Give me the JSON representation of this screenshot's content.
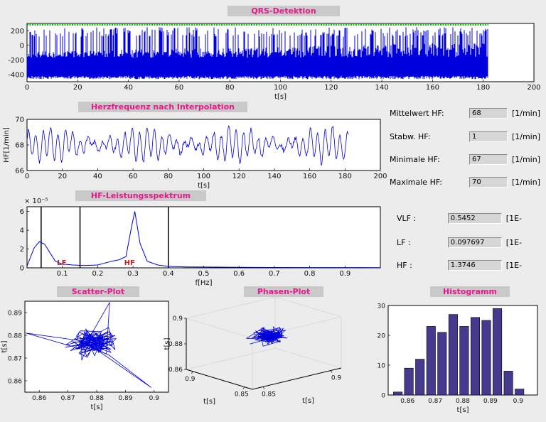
{
  "app": {
    "bg": "#ececec",
    "titlebar_bg": "#c9c9c9",
    "accent": "#e6198c",
    "plot_bg": "#ffffff",
    "signal_color": "#0000dd",
    "marker_color": "#00cc00",
    "bar_color": "#453a8e",
    "band_label_color": "#cc2222"
  },
  "fields_hf": [
    {
      "label": "Mittelwert HF:",
      "value": "68",
      "unit": "[1/min]"
    },
    {
      "label": "Stabw. HF:",
      "value": "1",
      "unit": "[1/min]"
    },
    {
      "label": "Minimale HF:",
      "value": "67",
      "unit": "[1/min]"
    },
    {
      "label": "Maximale HF:",
      "value": "70",
      "unit": "[1/min]"
    }
  ],
  "fields_power": [
    {
      "label": "VLF :",
      "value": "0.5452",
      "unit": "[1E-"
    },
    {
      "label": "LF :",
      "value": "0.097697",
      "unit": "[1E-"
    },
    {
      "label": "HF :",
      "value": "1.3746",
      "unit": "[1E-"
    }
  ],
  "chart_data": [
    {
      "type": "line",
      "title": "QRS-Detektion",
      "xlabel": "t[s]",
      "xlim": [
        0,
        200
      ],
      "ylim": [
        -500,
        300
      ],
      "xticks": [
        0,
        20,
        40,
        60,
        80,
        100,
        120,
        140,
        160,
        180,
        200
      ],
      "yticks": [
        200,
        0,
        -200,
        -400
      ],
      "signal": {
        "name": "ECG with detected QRS markers",
        "t_end": 182,
        "band_bottom": -450,
        "band_top": -100,
        "spike_max": 250,
        "marker_line_y": 280
      }
    },
    {
      "type": "line",
      "title": "Herzfrequenz nach Interpolation",
      "xlabel": "t[s]",
      "ylabel": "HF[1/min]",
      "xlim": [
        0,
        200
      ],
      "ylim": [
        66,
        70
      ],
      "xticks": [
        0,
        20,
        40,
        60,
        80,
        100,
        120,
        140,
        160,
        180,
        200
      ],
      "yticks": [
        66,
        68,
        70
      ],
      "signal": {
        "name": "interpolated heart rate",
        "t_end": 182,
        "mean": 68,
        "amp": 1.0,
        "period_s": 4.2
      }
    },
    {
      "type": "line",
      "title": "HF-Leistungsspektrum",
      "xlabel": "f[Hz]",
      "xlim": [
        0,
        1
      ],
      "ylim": [
        0,
        6.5
      ],
      "xticks": [
        0.1,
        0.2,
        0.3,
        0.4,
        0.5,
        0.6,
        0.7,
        0.8,
        0.9
      ],
      "xtick_labels": [
        "0.1",
        "0.2",
        "0.3",
        "0.4",
        "0.5",
        "0.6",
        "0.7",
        "0.8",
        "0.9"
      ],
      "yticks": [
        0,
        2,
        4,
        6
      ],
      "exponent_label": "× 10⁻⁵",
      "unit_scale": "1e-5",
      "vlines": [
        0.04,
        0.15,
        0.4
      ],
      "band_labels": [
        {
          "text": "LF",
          "x": 0.085
        },
        {
          "text": "HF",
          "x": 0.275
        }
      ],
      "points_x": [
        0,
        0.02,
        0.035,
        0.05,
        0.065,
        0.08,
        0.1,
        0.13,
        0.16,
        0.2,
        0.24,
        0.26,
        0.28,
        0.295,
        0.305,
        0.32,
        0.34,
        0.37,
        0.4,
        0.45,
        0.5,
        0.6,
        0.7,
        0.8,
        0.9,
        1
      ],
      "points_y": [
        0.2,
        2.1,
        2.8,
        2.5,
        1.6,
        0.7,
        0.4,
        0.3,
        0.25,
        0.3,
        0.7,
        0.85,
        1.2,
        4.2,
        6.0,
        2.6,
        0.7,
        0.3,
        0.15,
        0.1,
        0.08,
        0.05,
        0.04,
        0.03,
        0.03,
        0.02
      ]
    },
    {
      "type": "scatter-line",
      "title": "Scatter-Plot",
      "xlabel": "t[s]",
      "ylabel": "t[s]",
      "xlim": [
        0.855,
        0.905
      ],
      "ylim": [
        0.855,
        0.895
      ],
      "xticks": [
        0.86,
        0.87,
        0.88,
        0.89,
        0.9
      ],
      "xtick_labels": [
        "0.86",
        "0.87",
        "0.88",
        "0.89",
        "0.9"
      ],
      "yticks": [
        0.86,
        0.87,
        0.88,
        0.89
      ],
      "cluster": {
        "n": 130,
        "cx": 0.8785,
        "cy": 0.8765,
        "sx": 0.012,
        "sy": 0.009
      },
      "extremes": [
        [
          0.8553,
          0.881
        ],
        [
          0.899,
          0.857
        ],
        [
          0.8845,
          0.8945
        ]
      ]
    },
    {
      "type": "line3d",
      "title": "Phasen-Plot",
      "xlabel": "t[s]",
      "ylabel": "t[s]",
      "zlabel": "t[s]",
      "axis_range": {
        "x": [
          0.85,
          0.9
        ],
        "y": [
          0.85,
          0.9
        ],
        "z": [
          0.86,
          0.9
        ]
      },
      "ticks_left": [
        {
          "label": "0.9",
          "f": 0.1
        },
        {
          "label": "0.85",
          "f": 0.88
        }
      ],
      "ticks_right": [
        {
          "label": "0.85",
          "f": 0.12
        },
        {
          "label": "0.9",
          "f": 0.88
        }
      ],
      "ticks_z": [
        {
          "label": "0.86",
          "f": 0
        },
        {
          "label": "0.88",
          "f": 0.5
        },
        {
          "label": "0.9",
          "f": 1
        }
      ],
      "cluster": {
        "n": 150,
        "cx": 0.55,
        "cy": 0.5,
        "cz": 0.62,
        "sx": 0.24,
        "sy": 0.24,
        "sz": 0.17
      }
    },
    {
      "type": "bar",
      "title": "Histogramm",
      "xlabel": "t[s]",
      "xlim": [
        0.853,
        0.907
      ],
      "ylim": [
        0,
        30
      ],
      "xticks": [
        0.86,
        0.87,
        0.88,
        0.89,
        0.9
      ],
      "xtick_labels": [
        "0.86",
        "0.87",
        "0.88",
        "0.89",
        "0.9"
      ],
      "yticks": [
        0,
        10,
        20,
        30
      ],
      "bin_centers": [
        0.8565,
        0.8605,
        0.8645,
        0.8685,
        0.8725,
        0.8765,
        0.8805,
        0.8845,
        0.8885,
        0.8925,
        0.8965,
        0.9005
      ],
      "bin_width": 0.0032,
      "values": [
        1,
        9,
        12,
        23,
        21,
        27,
        23,
        26,
        25,
        29,
        8,
        2
      ]
    }
  ]
}
